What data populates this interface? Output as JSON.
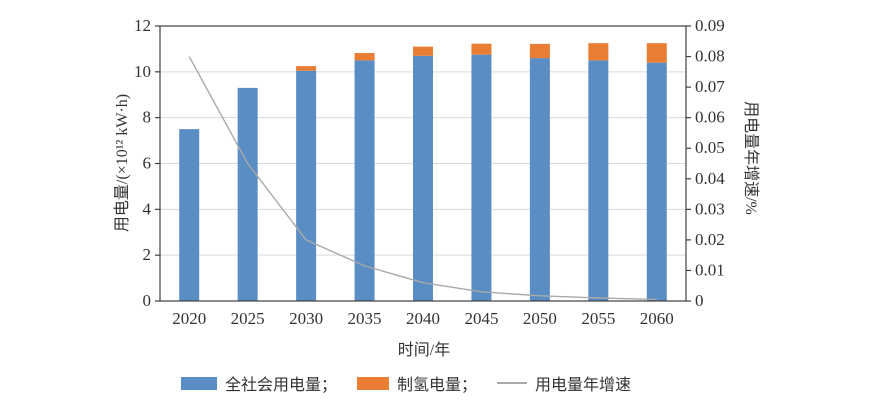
{
  "chart_data": {
    "type": "bar",
    "subtype": "stacked-bars-with-line-dual-axis",
    "title": "",
    "categories": [
      "2020",
      "2025",
      "2030",
      "2035",
      "2040",
      "2045",
      "2050",
      "2055",
      "2060"
    ],
    "series": [
      {
        "name": "全社会用电量",
        "type": "bar",
        "stack": "total",
        "axis": "left",
        "color": "#5B8DC5",
        "values": [
          7.5,
          9.3,
          10.05,
          10.5,
          10.7,
          10.75,
          10.6,
          10.5,
          10.4
        ]
      },
      {
        "name": "制氢电量",
        "type": "bar",
        "stack": "total",
        "axis": "left",
        "color": "#E87D33",
        "values": [
          0,
          0,
          0.2,
          0.32,
          0.4,
          0.48,
          0.62,
          0.75,
          0.85
        ]
      },
      {
        "name": "用电量年增速",
        "type": "line",
        "axis": "right",
        "color": "#A9A9A9",
        "values": [
          0.08,
          0.045,
          0.02,
          0.0115,
          0.006,
          0.003,
          0.0017,
          0.001,
          0.0005
        ]
      }
    ],
    "xlabel": "时间/年",
    "ylabel_left": "用电量/(×10¹² kW·h)",
    "ylabel_right": "用电量年增速/%",
    "ylim_left": [
      0,
      12
    ],
    "ylim_right": [
      0,
      0.09
    ],
    "yticks_left": [
      "0",
      "2",
      "4",
      "6",
      "8",
      "10",
      "12"
    ],
    "yticks_right": [
      "0",
      "0.01",
      "0.02",
      "0.03",
      "0.04",
      "0.05",
      "0.06",
      "0.07",
      "0.08",
      "0.09"
    ],
    "grid": true,
    "legend_position": "bottom",
    "legend": [
      {
        "label": "全社会用电量；",
        "swatch": "rect",
        "color": "#5B8DC5"
      },
      {
        "label": "制氢电量；",
        "swatch": "rect",
        "color": "#E87D33"
      },
      {
        "label": "用电量年增速",
        "swatch": "line",
        "color": "#A9A9A9"
      }
    ],
    "colors": {
      "bar_blue": "#5B8DC5",
      "bar_orange": "#E87D33",
      "line_gray": "#A9A9A9",
      "grid": "#D9D9D9",
      "axis": "#404040",
      "text": "#333333",
      "background": "#FFFFFF"
    }
  }
}
